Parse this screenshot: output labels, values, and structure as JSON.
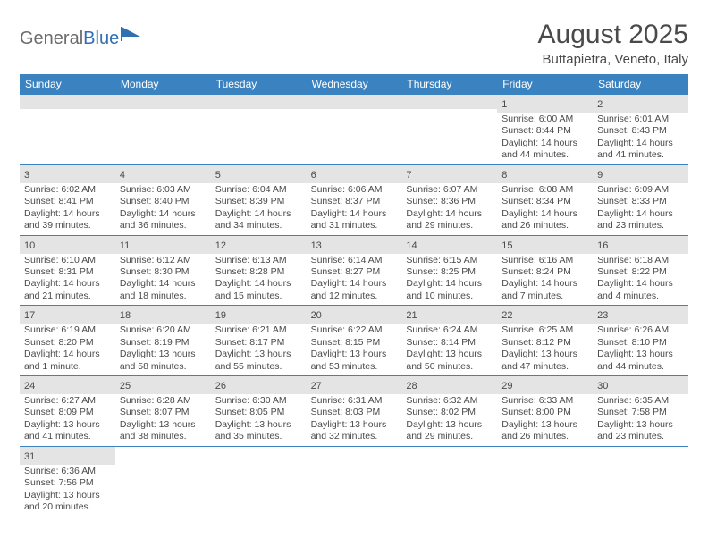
{
  "logo": {
    "text1": "General",
    "text2": "Blue"
  },
  "title": "August 2025",
  "location": "Buttapietra, Veneto, Italy",
  "colors": {
    "header_bg": "#3b83c0",
    "daynum_bg": "#e4e4e4",
    "text": "#4a4a4a",
    "row_border": "#3b83c0"
  },
  "weekdays": [
    "Sunday",
    "Monday",
    "Tuesday",
    "Wednesday",
    "Thursday",
    "Friday",
    "Saturday"
  ],
  "weeks": [
    [
      null,
      null,
      null,
      null,
      null,
      {
        "n": "1",
        "sunrise": "Sunrise: 6:00 AM",
        "sunset": "Sunset: 8:44 PM",
        "day1": "Daylight: 14 hours",
        "day2": "and 44 minutes."
      },
      {
        "n": "2",
        "sunrise": "Sunrise: 6:01 AM",
        "sunset": "Sunset: 8:43 PM",
        "day1": "Daylight: 14 hours",
        "day2": "and 41 minutes."
      }
    ],
    [
      {
        "n": "3",
        "sunrise": "Sunrise: 6:02 AM",
        "sunset": "Sunset: 8:41 PM",
        "day1": "Daylight: 14 hours",
        "day2": "and 39 minutes."
      },
      {
        "n": "4",
        "sunrise": "Sunrise: 6:03 AM",
        "sunset": "Sunset: 8:40 PM",
        "day1": "Daylight: 14 hours",
        "day2": "and 36 minutes."
      },
      {
        "n": "5",
        "sunrise": "Sunrise: 6:04 AM",
        "sunset": "Sunset: 8:39 PM",
        "day1": "Daylight: 14 hours",
        "day2": "and 34 minutes."
      },
      {
        "n": "6",
        "sunrise": "Sunrise: 6:06 AM",
        "sunset": "Sunset: 8:37 PM",
        "day1": "Daylight: 14 hours",
        "day2": "and 31 minutes."
      },
      {
        "n": "7",
        "sunrise": "Sunrise: 6:07 AM",
        "sunset": "Sunset: 8:36 PM",
        "day1": "Daylight: 14 hours",
        "day2": "and 29 minutes."
      },
      {
        "n": "8",
        "sunrise": "Sunrise: 6:08 AM",
        "sunset": "Sunset: 8:34 PM",
        "day1": "Daylight: 14 hours",
        "day2": "and 26 minutes."
      },
      {
        "n": "9",
        "sunrise": "Sunrise: 6:09 AM",
        "sunset": "Sunset: 8:33 PM",
        "day1": "Daylight: 14 hours",
        "day2": "and 23 minutes."
      }
    ],
    [
      {
        "n": "10",
        "sunrise": "Sunrise: 6:10 AM",
        "sunset": "Sunset: 8:31 PM",
        "day1": "Daylight: 14 hours",
        "day2": "and 21 minutes."
      },
      {
        "n": "11",
        "sunrise": "Sunrise: 6:12 AM",
        "sunset": "Sunset: 8:30 PM",
        "day1": "Daylight: 14 hours",
        "day2": "and 18 minutes."
      },
      {
        "n": "12",
        "sunrise": "Sunrise: 6:13 AM",
        "sunset": "Sunset: 8:28 PM",
        "day1": "Daylight: 14 hours",
        "day2": "and 15 minutes."
      },
      {
        "n": "13",
        "sunrise": "Sunrise: 6:14 AM",
        "sunset": "Sunset: 8:27 PM",
        "day1": "Daylight: 14 hours",
        "day2": "and 12 minutes."
      },
      {
        "n": "14",
        "sunrise": "Sunrise: 6:15 AM",
        "sunset": "Sunset: 8:25 PM",
        "day1": "Daylight: 14 hours",
        "day2": "and 10 minutes."
      },
      {
        "n": "15",
        "sunrise": "Sunrise: 6:16 AM",
        "sunset": "Sunset: 8:24 PM",
        "day1": "Daylight: 14 hours",
        "day2": "and 7 minutes."
      },
      {
        "n": "16",
        "sunrise": "Sunrise: 6:18 AM",
        "sunset": "Sunset: 8:22 PM",
        "day1": "Daylight: 14 hours",
        "day2": "and 4 minutes."
      }
    ],
    [
      {
        "n": "17",
        "sunrise": "Sunrise: 6:19 AM",
        "sunset": "Sunset: 8:20 PM",
        "day1": "Daylight: 14 hours",
        "day2": "and 1 minute."
      },
      {
        "n": "18",
        "sunrise": "Sunrise: 6:20 AM",
        "sunset": "Sunset: 8:19 PM",
        "day1": "Daylight: 13 hours",
        "day2": "and 58 minutes."
      },
      {
        "n": "19",
        "sunrise": "Sunrise: 6:21 AM",
        "sunset": "Sunset: 8:17 PM",
        "day1": "Daylight: 13 hours",
        "day2": "and 55 minutes."
      },
      {
        "n": "20",
        "sunrise": "Sunrise: 6:22 AM",
        "sunset": "Sunset: 8:15 PM",
        "day1": "Daylight: 13 hours",
        "day2": "and 53 minutes."
      },
      {
        "n": "21",
        "sunrise": "Sunrise: 6:24 AM",
        "sunset": "Sunset: 8:14 PM",
        "day1": "Daylight: 13 hours",
        "day2": "and 50 minutes."
      },
      {
        "n": "22",
        "sunrise": "Sunrise: 6:25 AM",
        "sunset": "Sunset: 8:12 PM",
        "day1": "Daylight: 13 hours",
        "day2": "and 47 minutes."
      },
      {
        "n": "23",
        "sunrise": "Sunrise: 6:26 AM",
        "sunset": "Sunset: 8:10 PM",
        "day1": "Daylight: 13 hours",
        "day2": "and 44 minutes."
      }
    ],
    [
      {
        "n": "24",
        "sunrise": "Sunrise: 6:27 AM",
        "sunset": "Sunset: 8:09 PM",
        "day1": "Daylight: 13 hours",
        "day2": "and 41 minutes."
      },
      {
        "n": "25",
        "sunrise": "Sunrise: 6:28 AM",
        "sunset": "Sunset: 8:07 PM",
        "day1": "Daylight: 13 hours",
        "day2": "and 38 minutes."
      },
      {
        "n": "26",
        "sunrise": "Sunrise: 6:30 AM",
        "sunset": "Sunset: 8:05 PM",
        "day1": "Daylight: 13 hours",
        "day2": "and 35 minutes."
      },
      {
        "n": "27",
        "sunrise": "Sunrise: 6:31 AM",
        "sunset": "Sunset: 8:03 PM",
        "day1": "Daylight: 13 hours",
        "day2": "and 32 minutes."
      },
      {
        "n": "28",
        "sunrise": "Sunrise: 6:32 AM",
        "sunset": "Sunset: 8:02 PM",
        "day1": "Daylight: 13 hours",
        "day2": "and 29 minutes."
      },
      {
        "n": "29",
        "sunrise": "Sunrise: 6:33 AM",
        "sunset": "Sunset: 8:00 PM",
        "day1": "Daylight: 13 hours",
        "day2": "and 26 minutes."
      },
      {
        "n": "30",
        "sunrise": "Sunrise: 6:35 AM",
        "sunset": "Sunset: 7:58 PM",
        "day1": "Daylight: 13 hours",
        "day2": "and 23 minutes."
      }
    ],
    [
      {
        "n": "31",
        "sunrise": "Sunrise: 6:36 AM",
        "sunset": "Sunset: 7:56 PM",
        "day1": "Daylight: 13 hours",
        "day2": "and 20 minutes."
      },
      null,
      null,
      null,
      null,
      null,
      null
    ]
  ]
}
